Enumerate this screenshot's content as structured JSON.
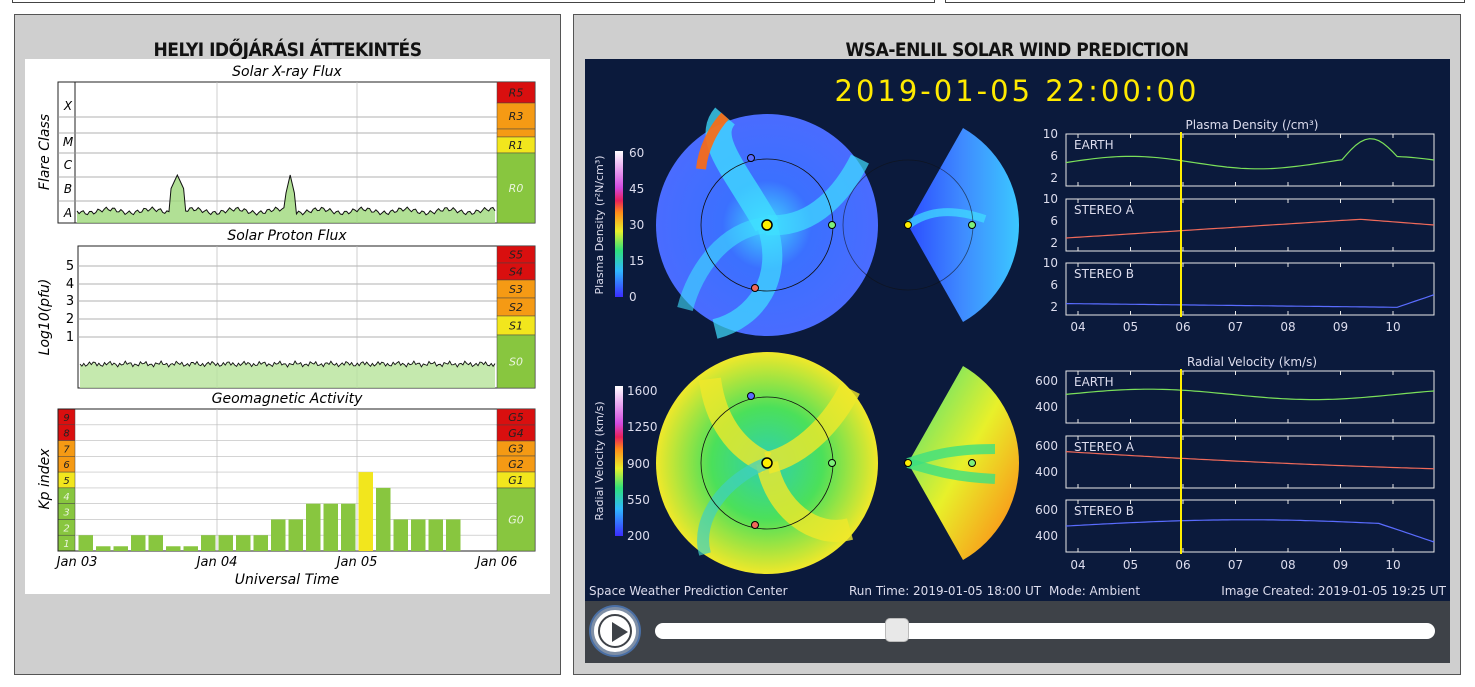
{
  "panels": {
    "left_title": "HELYI IDŐJÁRÁSI ÁTTEKINTÉS",
    "right_title": "WSA-ENLIL SOLAR WIND PREDICTION"
  },
  "swpc": {
    "xray": {
      "title": "Solar X-ray Flux",
      "ylabel": "Flare Class",
      "classes": [
        "X",
        "M",
        "C",
        "B",
        "A"
      ],
      "scales": [
        "R5",
        "R3",
        "R1",
        "R0"
      ]
    },
    "proton": {
      "title": "Solar Proton Flux",
      "ylabel": "Log10(pfu)",
      "ticks": [
        "5",
        "4",
        "3",
        "2",
        "1"
      ],
      "scales": [
        "S5",
        "S4",
        "S3",
        "S2",
        "S1",
        "S0"
      ]
    },
    "geomag": {
      "title": "Geomagnetic Activity",
      "ylabel": "Kp index",
      "levels": [
        "9",
        "8",
        "7",
        "6",
        "5",
        "4",
        "3",
        "2",
        "1"
      ],
      "scales": [
        "G5",
        "G4",
        "G3",
        "G2",
        "G1",
        "G0"
      ],
      "kp_values": [
        1,
        0.3,
        0.3,
        1,
        1,
        0.3,
        0.3,
        1,
        1,
        1,
        1,
        2,
        2,
        3,
        3,
        3,
        5,
        4,
        2,
        2,
        2,
        2
      ],
      "xlabel": "Universal Time",
      "date_ticks": [
        "Jan 03",
        "Jan 04",
        "Jan 05",
        "Jan 06"
      ]
    },
    "colors": {
      "red": "#d90f0f",
      "orange": "#f59a14",
      "yellow": "#f2e61d",
      "green": "#88c63f"
    }
  },
  "enlil": {
    "timestamp": "2019-01-05  22:00:00",
    "density": {
      "cbar_label": "Plasma Density (r²N/cm³)",
      "cbar_ticks": [
        "60",
        "45",
        "30",
        "15",
        "0"
      ],
      "title": "Plasma Density (/cm³)",
      "rows": [
        {
          "name": "EARTH",
          "ticks": [
            "10",
            "6",
            "2"
          ],
          "color": "#7be05a"
        },
        {
          "name": "STEREO A",
          "ticks": [
            "10",
            "6",
            "2"
          ],
          "color": "#f06a5a"
        },
        {
          "name": "STEREO B",
          "ticks": [
            "10",
            "6",
            "2"
          ],
          "color": "#5a6cff"
        }
      ]
    },
    "velocity": {
      "cbar_label": "Radial Velocity (km/s)",
      "cbar_ticks": [
        "1600",
        "1250",
        "900",
        "550",
        "200"
      ],
      "title": "Radial Velocity (km/s)",
      "rows": [
        {
          "name": "EARTH",
          "ticks": [
            "600",
            "400"
          ],
          "color": "#7be05a"
        },
        {
          "name": "STEREO A",
          "ticks": [
            "600",
            "400"
          ],
          "color": "#f06a5a"
        },
        {
          "name": "STEREO B",
          "ticks": [
            "600",
            "400"
          ],
          "color": "#5a6cff"
        }
      ]
    },
    "day_ticks": [
      "04",
      "05",
      "06",
      "07",
      "08",
      "09",
      "10"
    ],
    "footer": {
      "center": "Space Weather Prediction Center",
      "run_time": "Run Time: 2019-01-05 18:00 UT",
      "mode": "Mode: Ambient",
      "created": "Image Created: 2019-01-05 19:25 UT"
    }
  },
  "player": {
    "progress": 0.31
  }
}
